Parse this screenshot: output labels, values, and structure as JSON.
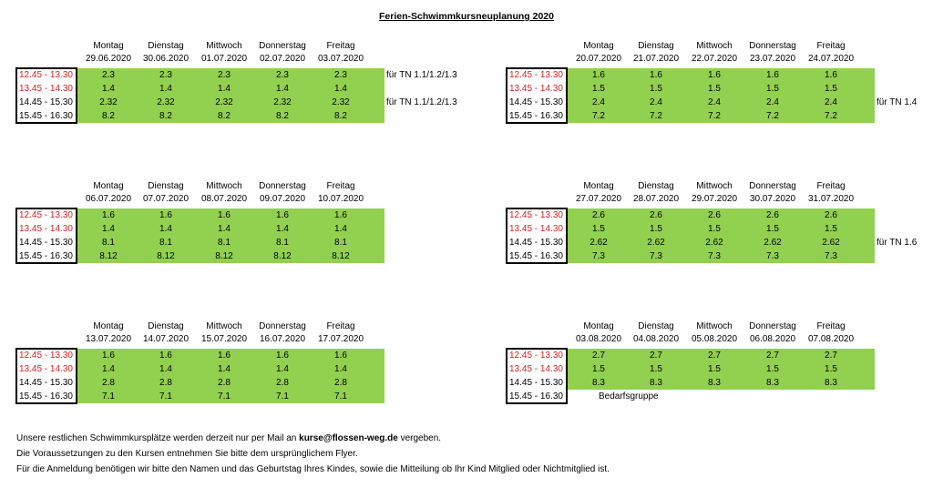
{
  "title": "Ferien-Schwimmkursneuplanung 2020",
  "day_names": [
    "Montag",
    "Dienstag",
    "Mittwoch",
    "Donnerstag",
    "Freitag"
  ],
  "time_slots": [
    "12.45 - 13.30",
    "13.45 - 14.30",
    "14.45 - 15.30",
    "15.45 - 16.30"
  ],
  "weeks": [
    {
      "dates": [
        "29.06.2020",
        "30.06.2020",
        "01.07.2020",
        "02.07.2020",
        "03.07.2020"
      ],
      "rows": [
        [
          "2.3",
          "2.3",
          "2.3",
          "2.3",
          "2.3"
        ],
        [
          "1.4",
          "1.4",
          "1.4",
          "1.4",
          "1.4"
        ],
        [
          "2.32",
          "2.32",
          "2.32",
          "2.32",
          "2.32"
        ],
        [
          "8.2",
          "8.2",
          "8.2",
          "8.2",
          "8.2"
        ]
      ],
      "notes": [
        "für TN 1.1/1.2/1.3",
        "",
        "für TN 1.1/1.2/1.3",
        ""
      ]
    },
    {
      "dates": [
        "20.07.2020",
        "21.07.2020",
        "22.07.2020",
        "23.07.2020",
        "24.07.2020"
      ],
      "rows": [
        [
          "1.6",
          "1.6",
          "1.6",
          "1.6",
          "1.6"
        ],
        [
          "1.5",
          "1.5",
          "1.5",
          "1.5",
          "1.5"
        ],
        [
          "2.4",
          "2.4",
          "2.4",
          "2.4",
          "2.4"
        ],
        [
          "7.2",
          "7.2",
          "7.2",
          "7.2",
          "7.2"
        ]
      ],
      "notes": [
        "",
        "",
        "für TN 1.4",
        ""
      ]
    },
    {
      "dates": [
        "06.07.2020",
        "07.07.2020",
        "08.07.2020",
        "09.07.2020",
        "10.07.2020"
      ],
      "rows": [
        [
          "1.6",
          "1.6",
          "1.6",
          "1.6",
          "1.6"
        ],
        [
          "1.4",
          "1.4",
          "1.4",
          "1.4",
          "1.4"
        ],
        [
          "8.1",
          "8.1",
          "8.1",
          "8.1",
          "8.1"
        ],
        [
          "8.12",
          "8.12",
          "8.12",
          "8.12",
          "8.12"
        ]
      ],
      "notes": [
        "",
        "",
        "",
        ""
      ]
    },
    {
      "dates": [
        "27.07.2020",
        "28.07.2020",
        "29.07.2020",
        "30.07.2020",
        "31.07.2020"
      ],
      "rows": [
        [
          "2.6",
          "2.6",
          "2.6",
          "2.6",
          "2.6"
        ],
        [
          "1.5",
          "1.5",
          "1.5",
          "1.5",
          "1.5"
        ],
        [
          "2.62",
          "2.62",
          "2.62",
          "2.62",
          "2.62"
        ],
        [
          "7.3",
          "7.3",
          "7.3",
          "7.3",
          "7.3"
        ]
      ],
      "notes": [
        "",
        "",
        "für TN 1.6",
        ""
      ]
    },
    {
      "dates": [
        "13.07.2020",
        "14.07.2020",
        "15.07.2020",
        "16.07.2020",
        "17.07.2020"
      ],
      "rows": [
        [
          "1.6",
          "1.6",
          "1.6",
          "1.6",
          "1.6"
        ],
        [
          "1.4",
          "1.4",
          "1.4",
          "1.4",
          "1.4"
        ],
        [
          "2.8",
          "2.8",
          "2.8",
          "2.8",
          "2.8"
        ],
        [
          "7.1",
          "7.1",
          "7.1",
          "7.1",
          "7.1"
        ]
      ],
      "notes": [
        "",
        "",
        "",
        ""
      ]
    },
    {
      "dates": [
        "03.08.2020",
        "04.08.2020",
        "05.08.2020",
        "06.08.2020",
        "07.08.2020"
      ],
      "rows": [
        [
          "2.7",
          "2.7",
          "2.7",
          "2.7",
          "2.7"
        ],
        [
          "1.5",
          "1.5",
          "1.5",
          "1.5",
          "1.5"
        ],
        [
          "8.3",
          "8.3",
          "8.3",
          "8.3",
          "8.3"
        ]
      ],
      "notes": [
        "",
        "",
        "",
        ""
      ],
      "last_row_text": "Bedarfsgruppe"
    }
  ],
  "footer": {
    "line1_before": "Unsere restlichen Schwimmkursplätze werden derzeit nur per Mail an ",
    "line1_email": "kurse@flossen-weg.de",
    "line1_after": " vergeben.",
    "line2": "Die Voraussetzungen zu den Kursen entnehmen Sie bitte dem ursprünglichem Flyer.",
    "line3": "Für die Anmeldung benötigen wir bitte den Namen und das Geburtstag Ihres Kindes, sowie die Mitteilung ob Ihr Kind Mitglied oder Nichtmitglied ist."
  },
  "colors": {
    "cell_green": "#92d050",
    "time_red": "#d42020"
  }
}
